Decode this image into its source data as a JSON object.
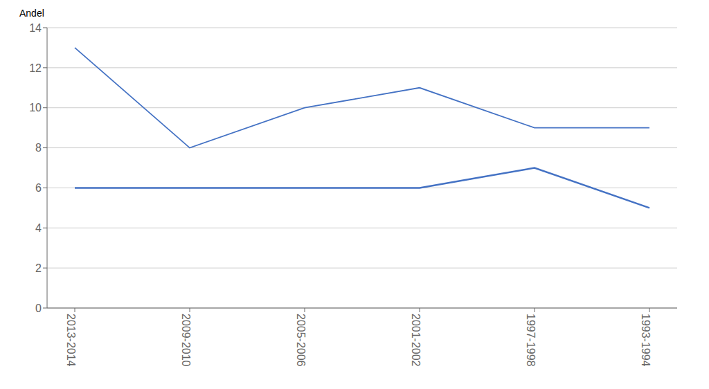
{
  "chart_data": {
    "type": "line",
    "y_label": "Andel",
    "categories": [
      "2013-2014",
      "2009-2010",
      "2005-2006",
      "2001-2002",
      "1997-1998",
      "1993-1994"
    ],
    "series": [
      {
        "color": "#4472C4",
        "values": [
          13,
          8,
          10,
          11,
          9,
          9
        ]
      },
      {
        "color": "#4472C4",
        "values": [
          6,
          6,
          6,
          6,
          7,
          5
        ]
      }
    ],
    "ylim": [
      0,
      14
    ],
    "yticks": [
      0,
      2,
      4,
      6,
      8,
      10,
      12,
      14
    ],
    "grid": true
  }
}
